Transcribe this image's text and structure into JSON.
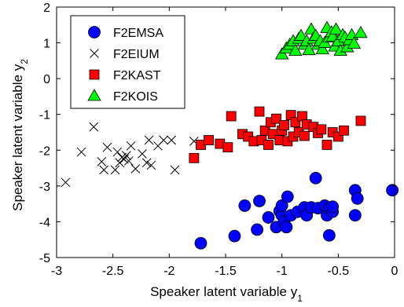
{
  "chart_data": {
    "type": "scatter",
    "xlabel": "Speaker latent variable y",
    "xlabel_subscript": "1",
    "ylabel": "Speaker latent variable y",
    "ylabel_subscript": "2",
    "xlim": [
      -3,
      0
    ],
    "ylim": [
      -5,
      2
    ],
    "xticks": [
      -3,
      -2.5,
      -2,
      -1.5,
      -1,
      -0.5,
      0
    ],
    "xtick_labels": [
      "-3",
      "-2.5",
      "-2",
      "-1.5",
      "-1",
      "-0.5",
      "0"
    ],
    "yticks": [
      -5,
      -4,
      -3,
      -2,
      -1,
      0,
      1,
      2
    ],
    "ytick_labels": [
      "-5",
      "-4",
      "-3",
      "-2",
      "-1",
      "0",
      "1",
      "2"
    ],
    "grid": false,
    "legend_position": "top-left",
    "series": [
      {
        "name": "F2EMSA",
        "marker": "circle",
        "color": "#0000ff",
        "points": [
          [
            -1.72,
            -4.6
          ],
          [
            -1.42,
            -4.4
          ],
          [
            -1.33,
            -3.55
          ],
          [
            -1.22,
            -4.22
          ],
          [
            -1.2,
            -3.42
          ],
          [
            -1.12,
            -3.88
          ],
          [
            -1.05,
            -4.15
          ],
          [
            -1.02,
            -3.7
          ],
          [
            -1.0,
            -3.82
          ],
          [
            -1.0,
            -3.55
          ],
          [
            -0.98,
            -4.0
          ],
          [
            -0.96,
            -4.15
          ],
          [
            -0.95,
            -3.3
          ],
          [
            -0.92,
            -3.82
          ],
          [
            -0.86,
            -3.72
          ],
          [
            -0.8,
            -3.6
          ],
          [
            -0.78,
            -3.82
          ],
          [
            -0.74,
            -3.6
          ],
          [
            -0.7,
            -2.78
          ],
          [
            -0.68,
            -3.62
          ],
          [
            -0.62,
            -3.55
          ],
          [
            -0.6,
            -3.82
          ],
          [
            -0.58,
            -4.38
          ],
          [
            -0.58,
            -3.62
          ],
          [
            -0.55,
            -3.72
          ],
          [
            -0.55,
            -3.58
          ],
          [
            -0.35,
            -3.12
          ],
          [
            -0.35,
            -3.82
          ],
          [
            -0.33,
            -3.35
          ],
          [
            -0.02,
            -3.12
          ]
        ]
      },
      {
        "name": "F2EIUM",
        "marker": "x",
        "color": "#000000",
        "points": [
          [
            -2.92,
            -2.9
          ],
          [
            -2.78,
            -2.05
          ],
          [
            -2.67,
            -1.35
          ],
          [
            -2.6,
            -2.32
          ],
          [
            -2.58,
            -2.55
          ],
          [
            -2.55,
            -1.92
          ],
          [
            -2.48,
            -2.55
          ],
          [
            -2.46,
            -2.05
          ],
          [
            -2.44,
            -2.35
          ],
          [
            -2.42,
            -2.2
          ],
          [
            -2.4,
            -2.25
          ],
          [
            -2.38,
            -2.15
          ],
          [
            -2.36,
            -2.3
          ],
          [
            -2.34,
            -1.88
          ],
          [
            -2.3,
            -2.52
          ],
          [
            -2.24,
            -2.1
          ],
          [
            -2.2,
            -2.35
          ],
          [
            -2.18,
            -1.72
          ],
          [
            -2.16,
            -2.42
          ],
          [
            -2.1,
            -1.88
          ],
          [
            -2.05,
            -1.72
          ],
          [
            -1.98,
            -1.72
          ],
          [
            -1.95,
            -2.55
          ],
          [
            -1.78,
            -1.75
          ]
        ]
      },
      {
        "name": "F2KAST",
        "marker": "square",
        "color": "#ff0000",
        "points": [
          [
            -1.78,
            -2.22
          ],
          [
            -1.72,
            -1.85
          ],
          [
            -1.65,
            -1.72
          ],
          [
            -1.55,
            -1.82
          ],
          [
            -1.48,
            -1.92
          ],
          [
            -1.45,
            -1.05
          ],
          [
            -1.35,
            -1.55
          ],
          [
            -1.3,
            -1.62
          ],
          [
            -1.25,
            -1.75
          ],
          [
            -1.2,
            -0.92
          ],
          [
            -1.18,
            -1.72
          ],
          [
            -1.15,
            -1.45
          ],
          [
            -1.12,
            -1.85
          ],
          [
            -1.1,
            -1.22
          ],
          [
            -1.08,
            -1.55
          ],
          [
            -1.05,
            -1.12
          ],
          [
            -1.02,
            -1.72
          ],
          [
            -1.0,
            -1.45
          ],
          [
            -0.98,
            -1.3
          ],
          [
            -0.95,
            -1.75
          ],
          [
            -0.92,
            -1.02
          ],
          [
            -0.9,
            -1.62
          ],
          [
            -0.88,
            -1.22
          ],
          [
            -0.85,
            -1.5
          ],
          [
            -0.82,
            -1.05
          ],
          [
            -0.8,
            -1.6
          ],
          [
            -0.78,
            -1.28
          ],
          [
            -0.72,
            -1.35
          ],
          [
            -0.68,
            -1.52
          ],
          [
            -0.65,
            -1.42
          ],
          [
            -0.6,
            -1.85
          ],
          [
            -0.55,
            -1.5
          ],
          [
            -0.5,
            -1.62
          ],
          [
            -0.45,
            -1.45
          ],
          [
            -0.3,
            -1.18
          ]
        ]
      },
      {
        "name": "F2KOIS",
        "marker": "triangle",
        "color": "#00ff00",
        "points": [
          [
            -1.0,
            0.68
          ],
          [
            -0.96,
            0.85
          ],
          [
            -0.93,
            0.95
          ],
          [
            -0.9,
            1.05
          ],
          [
            -0.88,
            0.78
          ],
          [
            -0.85,
            1.12
          ],
          [
            -0.83,
            1.2
          ],
          [
            -0.8,
            0.95
          ],
          [
            -0.78,
            1.05
          ],
          [
            -0.76,
            0.8
          ],
          [
            -0.74,
            1.38
          ],
          [
            -0.72,
            1.12
          ],
          [
            -0.7,
            1.2
          ],
          [
            -0.68,
            0.95
          ],
          [
            -0.66,
            1.05
          ],
          [
            -0.64,
            0.82
          ],
          [
            -0.62,
            1.0
          ],
          [
            -0.6,
            1.42
          ],
          [
            -0.58,
            1.15
          ],
          [
            -0.56,
            1.3
          ],
          [
            -0.55,
            1.18
          ],
          [
            -0.53,
            0.9
          ],
          [
            -0.52,
            1.38
          ],
          [
            -0.5,
            1.05
          ],
          [
            -0.48,
            0.78
          ],
          [
            -0.46,
            1.22
          ],
          [
            -0.44,
            1.15
          ],
          [
            -0.42,
            0.88
          ],
          [
            -0.4,
            1.08
          ],
          [
            -0.38,
            1.22
          ],
          [
            -0.36,
            0.98
          ],
          [
            -0.3,
            1.28
          ]
        ]
      }
    ]
  }
}
